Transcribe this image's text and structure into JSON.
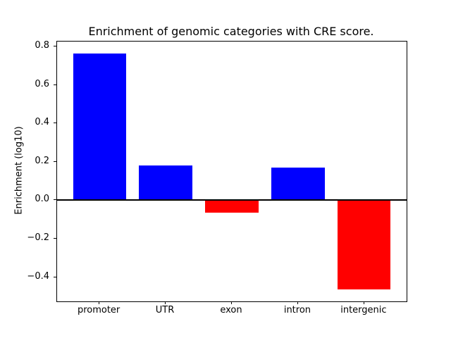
{
  "chart_data": {
    "type": "bar",
    "title": "Enrichment of genomic categories with CRE score.",
    "xlabel": "",
    "ylabel": "Enrichment (log10)",
    "categories": [
      "promoter",
      "UTR",
      "exon",
      "intron",
      "intergenic"
    ],
    "values": [
      0.765,
      0.18,
      -0.065,
      0.17,
      -0.465
    ],
    "bar_colors": [
      "#0000ff",
      "#0000ff",
      "#ff0000",
      "#0000ff",
      "#ff0000"
    ],
    "positive_color": "#0000ff",
    "negative_color": "#ff0000",
    "ytick_values": [
      0.8,
      0.6,
      0.4,
      0.2,
      0.0,
      -0.2,
      -0.4
    ],
    "ytick_labels": [
      "0.8",
      "0.6",
      "0.4",
      "0.2",
      "0.0",
      "−0.2",
      "−0.4"
    ],
    "ylim": [
      -0.5265,
      0.8265
    ],
    "xlim": [
      -0.64,
      4.64
    ],
    "bar_width_fraction": 0.8,
    "zero_line": true,
    "grid": false,
    "legend": false,
    "frame_color": "#000000",
    "background_color": "#ffffff"
  }
}
